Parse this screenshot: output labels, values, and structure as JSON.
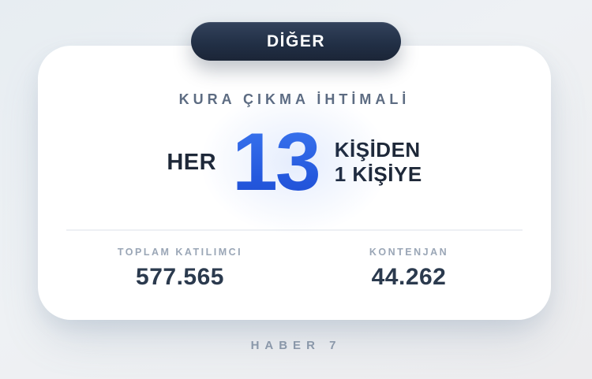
{
  "badge": {
    "label": "DİĞER"
  },
  "card": {
    "title": "KURA ÇIKMA İHTİMALİ",
    "ratio": {
      "prefix": "HER",
      "number": "13",
      "suffix_line1": "KİŞİDEN",
      "suffix_line2": "1 KİŞİYE"
    },
    "stats": [
      {
        "label": "TOPLAM KATILIMCI",
        "value": "577.565"
      },
      {
        "label": "KONTENJAN",
        "value": "44.262"
      }
    ]
  },
  "footer": {
    "brand": "HABER 7"
  },
  "colors": {
    "accent_blue": "#2a5ce0",
    "badge_bg": "#223046",
    "text_dark": "#1e2838",
    "label_gray": "#9aa6b6",
    "page_bg": "#eef1f4"
  }
}
